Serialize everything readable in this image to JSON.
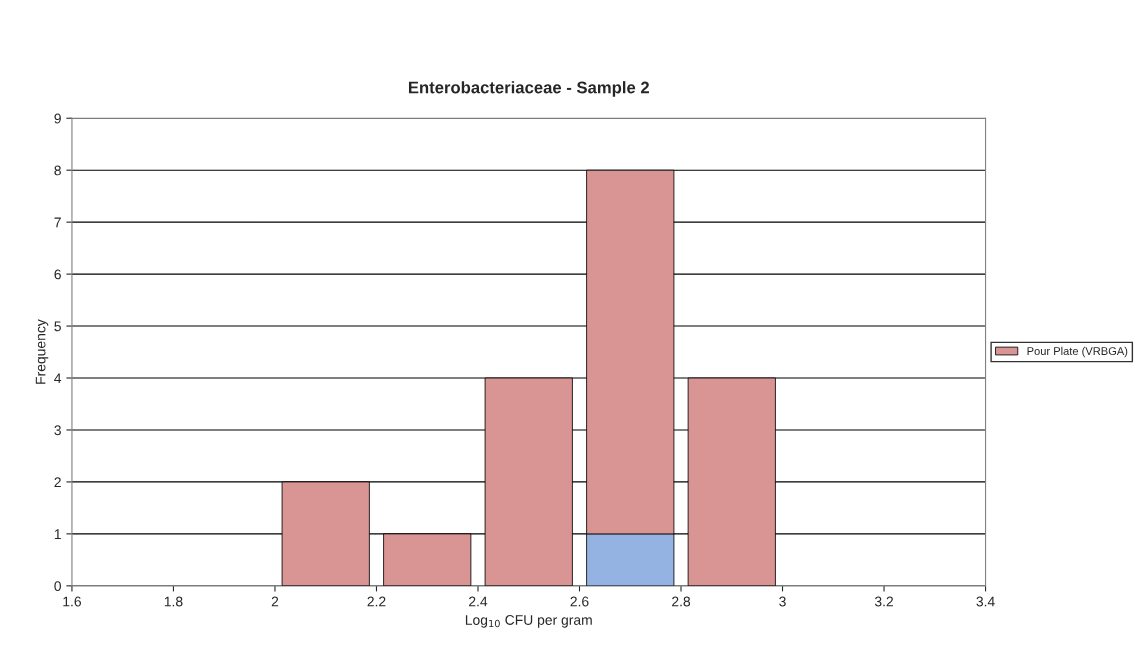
{
  "chart_data": {
    "type": "bar",
    "title": "Enterobacteriaceae - Sample 2",
    "xlabel": "Log$_{10}$ CFU per gram",
    "ylabel": "Frequency",
    "x": [
      2.1,
      2.3,
      2.5,
      2.7,
      2.9
    ],
    "stacked": true,
    "series": [
      {
        "color": "#95b3e2",
        "values": [
          0,
          0,
          0,
          1,
          0
        ]
      },
      {
        "name": "Pour Plate (VRBGA)",
        "color": "#d99594",
        "values": [
          2,
          1,
          4,
          7,
          4
        ]
      }
    ],
    "xlim": [
      1.6,
      3.4
    ],
    "xticks": [
      1.6,
      1.8,
      2,
      2.2,
      2.4,
      2.6,
      2.8,
      3,
      3.2,
      3.4
    ],
    "ylim": [
      0,
      9
    ],
    "yticks": [
      0,
      1,
      2,
      3,
      4,
      5,
      6,
      7,
      8,
      9
    ],
    "grid": "y",
    "legend": "right"
  }
}
